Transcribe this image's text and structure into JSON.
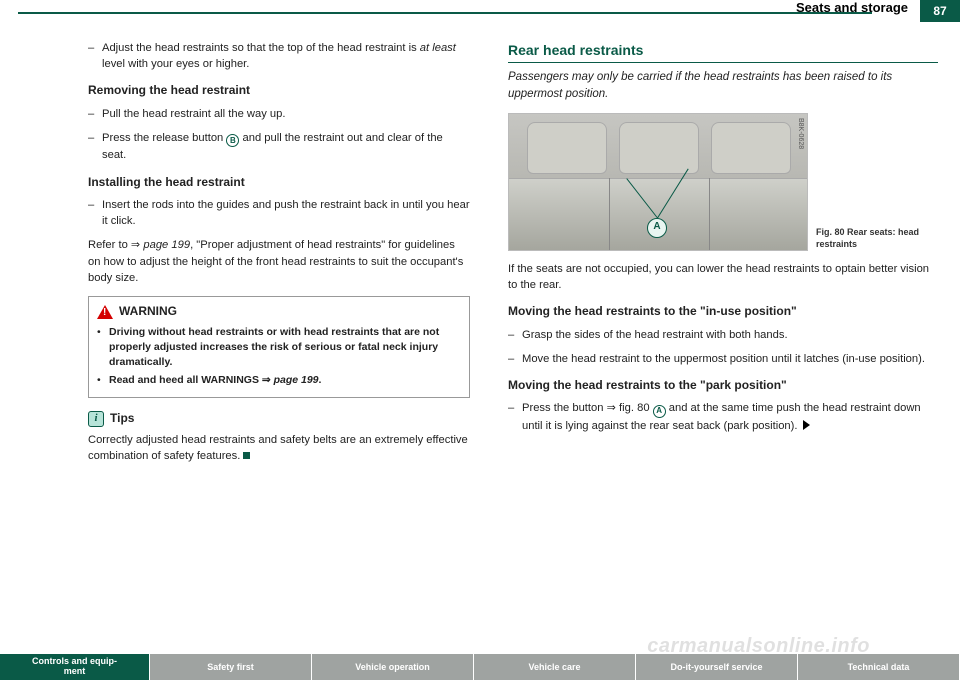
{
  "header": {
    "section": "Seats and storage",
    "page": "87"
  },
  "left": {
    "intro_item": "Adjust the head restraints so that the top of the head restraint is <span class=\"italic\">at least</span> level with your eyes or higher.",
    "remove_head": "Removing the head restraint",
    "remove_items": [
      "Pull the head restraint all the way up.",
      "Press the release button <span class=\"circ\">B</span> and pull the restraint out and clear of the seat."
    ],
    "install_head": "Installing the head restraint",
    "install_item": "Insert the rods into the guides and push the restraint back in until you hear it click.",
    "refer": "Refer to ⇒ <span class=\"italic\">page 199</span>, \"Proper adjustment of head restraints\" for guidelines on how to adjust the height of the front head restraints to suit the occupant's body size.",
    "warning_label": "WARNING",
    "warning_items": [
      "<b>Driving without head restraints or with head restraints that are not properly adjusted increases the risk of serious or fatal neck injury dramatically.</b>",
      "<b>Read and heed all WARNINGS ⇒ <span class=\"italic\">page 199</span>.</b>"
    ],
    "tips_label": "Tips",
    "tips_text": "Correctly adjusted head restraints and safety belts are an extremely effective combination of safety features. "
  },
  "right": {
    "title": "Rear head restraints",
    "subtitle": "Passengers may only be carried if the head restraints has been raised to its uppermost position.",
    "img_code": "B8K-0628",
    "a_label": "A",
    "fig_caption": "Fig. 80  Rear seats: head restraints",
    "after_fig": "If the seats are not occupied, you can lower the head restraints to optain better vision to the rear.",
    "inuse_head": "Moving the head restraints to the \"in-use position\"",
    "inuse_items": [
      "Grasp the sides of the head restraint with both hands.",
      "Move the head restraint to the uppermost position until it latches (in-use position)."
    ],
    "park_head": "Moving the head restraints to the \"park position\"",
    "park_item": "Press the button ⇒ fig. 80 <span class=\"circ\">A</span> and at the same time push the head restraint down until it is lying against the rear seat back (park position)."
  },
  "footer": {
    "tabs": [
      "Controls and equip-<br>ment",
      "Safety first",
      "Vehicle operation",
      "Vehicle care",
      "Do-it-yourself service",
      "Technical data"
    ]
  },
  "watermark": "carmanualsonline.info"
}
